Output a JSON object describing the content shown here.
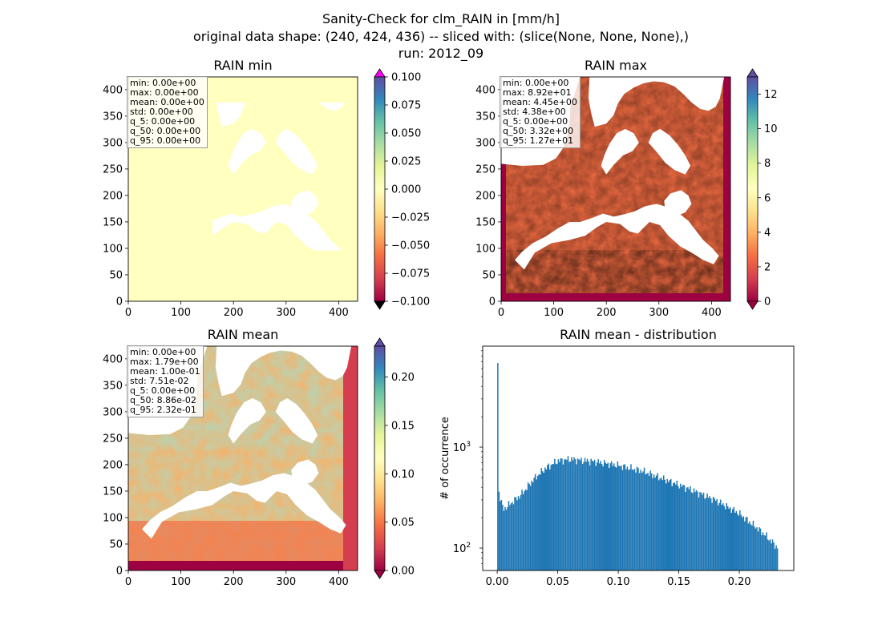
{
  "figure": {
    "suptitle_lines": [
      "Sanity-Check for clm_RAIN in [mm/h]",
      "original data shape: (240, 424, 436) -- sliced with: (slice(None, None, None),)",
      "run: 2012_09"
    ]
  },
  "chart_data": [
    {
      "type": "heatmap",
      "title": "RAIN min",
      "xlim": [
        0,
        436
      ],
      "ylim": [
        0,
        424
      ],
      "xticks": [
        0,
        100,
        200,
        300,
        400
      ],
      "yticks": [
        0,
        50,
        100,
        150,
        200,
        250,
        300,
        350,
        400
      ],
      "colorbar": {
        "colormap": "Spectral",
        "range": [
          -0.1,
          0.1
        ],
        "ticks": [
          "0.100",
          "0.075",
          "0.050",
          "0.025",
          "0.000",
          "−0.025",
          "−0.050",
          "−0.075",
          "−0.100"
        ],
        "extend": "both",
        "over_color": "#ff00ff",
        "under_color": "#000000"
      },
      "field_color": "#ffffbf",
      "stats": [
        "min: 0.00e+00",
        "max: 0.00e+00",
        "mean: 0.00e+00",
        "std: 0.00e+00",
        "q_5: 0.00e+00",
        "q_50: 0.00e+00",
        "q_95: 0.00e+00"
      ]
    },
    {
      "type": "heatmap",
      "title": "RAIN max",
      "xlim": [
        0,
        436
      ],
      "ylim": [
        0,
        424
      ],
      "xticks": [
        0,
        100,
        200,
        300,
        400
      ],
      "yticks": [
        0,
        50,
        100,
        150,
        200,
        250,
        300,
        350,
        400
      ],
      "colorbar": {
        "colormap": "Spectral",
        "range": [
          0,
          13
        ],
        "ticks": [
          "12",
          "10",
          "8",
          "6",
          "4",
          "2",
          "0"
        ],
        "extend": "both"
      },
      "stats": [
        "min: 0.00e+00",
        "max: 8.92e+01",
        "mean: 4.45e+00",
        "std: 4.38e+00",
        "q_5: 0.00e+00",
        "q_50: 3.32e+00",
        "q_95: 1.27e+01"
      ]
    },
    {
      "type": "heatmap",
      "title": "RAIN mean",
      "xlim": [
        0,
        436
      ],
      "ylim": [
        0,
        424
      ],
      "xticks": [
        0,
        100,
        200,
        300,
        400
      ],
      "yticks": [
        0,
        50,
        100,
        150,
        200,
        250,
        300,
        350,
        400
      ],
      "colorbar": {
        "colormap": "Spectral",
        "range": [
          0,
          0.232
        ],
        "ticks": [
          "0.20",
          "0.15",
          "0.10",
          "0.05",
          "0.00"
        ],
        "extend": "both"
      },
      "stats": [
        "min: 0.00e+00",
        "max: 1.79e+00",
        "mean: 1.00e-01",
        "std: 7.51e-02",
        "q_5: 0.00e+00",
        "q_50: 8.86e-02",
        "q_95: 2.32e-01"
      ]
    },
    {
      "type": "bar",
      "title": "RAIN mean - distribution",
      "ylabel": "# of occurrence",
      "yscale": "log",
      "xlim": [
        -0.012,
        0.245
      ],
      "ylim": [
        60,
        10000
      ],
      "xticks": [
        "0.00",
        "0.05",
        "0.10",
        "0.15",
        "0.20"
      ],
      "yticks": [
        {
          "base": "10",
          "exp": "3",
          "value": 1000
        },
        {
          "base": "10",
          "exp": "2",
          "value": 100
        }
      ],
      "bar_color": "#1f77b4",
      "bin_range": [
        0,
        0.232
      ],
      "bins": 232,
      "key_counts": [
        {
          "x": 0.0,
          "count": 6800
        },
        {
          "x": 0.001,
          "count": 380
        },
        {
          "x": 0.005,
          "count": 240
        },
        {
          "x": 0.01,
          "count": 270
        },
        {
          "x": 0.02,
          "count": 340
        },
        {
          "x": 0.03,
          "count": 480
        },
        {
          "x": 0.04,
          "count": 620
        },
        {
          "x": 0.05,
          "count": 730
        },
        {
          "x": 0.06,
          "count": 760
        },
        {
          "x": 0.08,
          "count": 720
        },
        {
          "x": 0.1,
          "count": 660
        },
        {
          "x": 0.12,
          "count": 580
        },
        {
          "x": 0.14,
          "count": 470
        },
        {
          "x": 0.16,
          "count": 380
        },
        {
          "x": 0.18,
          "count": 300
        },
        {
          "x": 0.2,
          "count": 220
        },
        {
          "x": 0.22,
          "count": 140
        },
        {
          "x": 0.232,
          "count": 100
        }
      ]
    }
  ]
}
